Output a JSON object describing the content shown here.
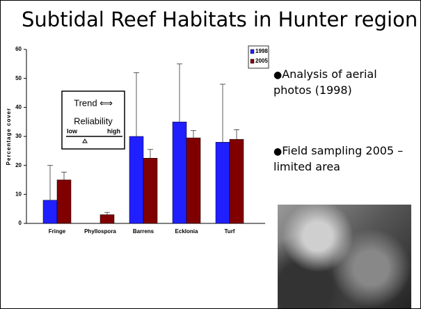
{
  "slide": {
    "title": "Subtidal Reef Habitats in Hunter region",
    "bullets": [
      "Analysis of aerial photos (1998)",
      "Field sampling 2005 – limited area"
    ]
  },
  "chart_data": {
    "type": "bar",
    "ylabel": "Percentage cover",
    "categories": [
      "Fringe",
      "Phyllospora",
      "Barrens",
      "Ecklonia",
      "Turf"
    ],
    "series": [
      {
        "name": "1998",
        "color": "#1f1fff",
        "values": [
          8,
          null,
          30,
          35,
          28
        ],
        "errors": [
          12,
          null,
          22,
          20,
          20
        ]
      },
      {
        "name": "2005",
        "color": "#800000",
        "values": [
          15,
          3,
          22.5,
          29.5,
          29
        ],
        "errors": [
          2.7,
          0.8,
          3,
          2.5,
          3.3
        ]
      }
    ],
    "ylim": [
      0,
      60
    ],
    "yticks": [
      0,
      10,
      20,
      30,
      40,
      50,
      60
    ],
    "grid": false,
    "legend": "top-right",
    "key_box": {
      "trend": "Trend ⟺",
      "reliability": "Reliability",
      "low": "low",
      "high": "high"
    }
  }
}
